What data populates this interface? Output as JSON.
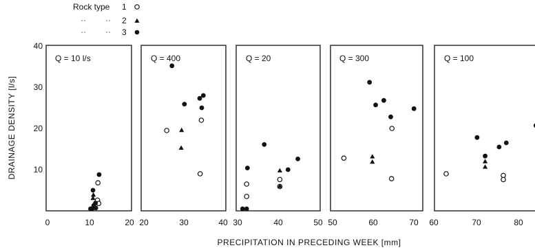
{
  "legend": {
    "title": "Rock type",
    "entries": [
      {
        "label": "1",
        "marker": "open-circle"
      },
      {
        "label": "2",
        "marker": "filled-triangle"
      },
      {
        "label": "3",
        "marker": "filled-circle"
      }
    ]
  },
  "colors": {
    "ink": "#111111",
    "background": "#ffffff"
  },
  "chart_data": [
    {
      "type": "scatter",
      "title": "Q = 10 l/s",
      "xlabel": "PRECIPITATION IN PRECEDING WEEK [mm]",
      "ylabel": "DRAINAGE DENSITY [l/s]",
      "xlim": [
        0,
        20
      ],
      "ylim": [
        0,
        40
      ],
      "xticks": [
        0,
        10,
        20
      ],
      "yticks": [
        10,
        20,
        30,
        40
      ],
      "xtick_labels": [
        "0",
        "10",
        "20"
      ],
      "ytick_labels": [
        "10",
        "20",
        "30",
        "40"
      ],
      "series": [
        {
          "name": "1",
          "marker": "open-circle",
          "points": [
            [
              12.3,
              6.8
            ],
            [
              12.2,
              2.6
            ],
            [
              12.5,
              1.8
            ]
          ]
        },
        {
          "name": "2",
          "marker": "filled-triangle",
          "points": [
            [
              11.2,
              3.9
            ],
            [
              11.1,
              3.1
            ]
          ]
        },
        {
          "name": "3",
          "marker": "filled-circle",
          "points": [
            [
              12.6,
              8.8
            ],
            [
              11.1,
              5.0
            ],
            [
              11.7,
              1.9
            ],
            [
              11.3,
              1.3
            ],
            [
              10.5,
              0.5
            ],
            [
              11.0,
              0.6
            ],
            [
              11.8,
              0.7
            ]
          ]
        }
      ]
    },
    {
      "type": "scatter",
      "title": "Q = 400",
      "xlim": [
        20,
        40
      ],
      "ylim": [
        0,
        40
      ],
      "xticks": [
        20,
        30,
        40
      ],
      "xtick_labels": [
        "20",
        "30",
        "40"
      ],
      "series": [
        {
          "name": "1",
          "marker": "open-circle",
          "points": [
            [
              26.0,
              19.5
            ],
            [
              34.6,
              22.0
            ],
            [
              34.3,
              9.0
            ]
          ]
        },
        {
          "name": "2",
          "marker": "filled-triangle",
          "points": [
            [
              29.7,
              19.6
            ],
            [
              29.6,
              15.3
            ]
          ]
        },
        {
          "name": "3",
          "marker": "filled-circle",
          "points": [
            [
              27.3,
              35.2
            ],
            [
              30.4,
              25.9
            ],
            [
              34.2,
              27.3
            ],
            [
              35.1,
              28.0
            ],
            [
              34.7,
              25.0
            ]
          ]
        }
      ]
    },
    {
      "type": "scatter",
      "title": "Q = 20",
      "xlim": [
        30,
        50
      ],
      "ylim": [
        0,
        40
      ],
      "xticks": [
        30,
        40,
        50
      ],
      "xtick_labels": [
        "30",
        "40",
        "50"
      ],
      "series": [
        {
          "name": "1",
          "marker": "open-circle",
          "points": [
            [
              32.3,
              6.5
            ],
            [
              32.3,
              3.5
            ],
            [
              40.4,
              7.6
            ],
            [
              40.4,
              5.9
            ]
          ]
        },
        {
          "name": "2",
          "marker": "filled-triangle",
          "points": [
            [
              40.4,
              9.8
            ],
            [
              40.4,
              6.0
            ]
          ]
        },
        {
          "name": "3",
          "marker": "filled-circle",
          "points": [
            [
              32.5,
              10.4
            ],
            [
              36.6,
              16.1
            ],
            [
              42.4,
              10.0
            ],
            [
              44.8,
              12.6
            ],
            [
              31.3,
              0.5
            ],
            [
              32.3,
              0.5
            ]
          ]
        }
      ]
    },
    {
      "type": "scatter",
      "title": "Q = 300",
      "xlim": [
        50,
        70
      ],
      "ylim": [
        0,
        40
      ],
      "xticks": [
        50,
        60,
        70
      ],
      "xtick_labels": [
        "50",
        "60",
        "70"
      ],
      "series": [
        {
          "name": "1",
          "marker": "open-circle",
          "points": [
            [
              52.6,
              12.8
            ],
            [
              64.4,
              20.0
            ],
            [
              64.3,
              7.8
            ]
          ]
        },
        {
          "name": "2",
          "marker": "filled-triangle",
          "points": [
            [
              59.6,
              13.2
            ],
            [
              59.6,
              11.9
            ]
          ]
        },
        {
          "name": "3",
          "marker": "filled-circle",
          "points": [
            [
              58.9,
              31.2
            ],
            [
              60.4,
              25.7
            ],
            [
              62.4,
              26.8
            ],
            [
              64.1,
              22.8
            ],
            [
              69.8,
              24.8
            ]
          ]
        }
      ]
    },
    {
      "type": "scatter",
      "title": "Q = 100",
      "xlim": [
        60,
        84
      ],
      "ylim": [
        0,
        40
      ],
      "xticks": [
        60,
        70,
        80
      ],
      "xtick_labels": [
        "60",
        "70",
        "80"
      ],
      "series": [
        {
          "name": "1",
          "marker": "open-circle",
          "points": [
            [
              62.6,
              9.0
            ],
            [
              76.1,
              8.6
            ],
            [
              76.1,
              7.6
            ]
          ]
        },
        {
          "name": "2",
          "marker": "filled-triangle",
          "points": [
            [
              71.8,
              12.0
            ],
            [
              71.8,
              10.7
            ]
          ]
        },
        {
          "name": "3",
          "marker": "filled-circle",
          "points": [
            [
              69.9,
              17.8
            ],
            [
              71.8,
              13.3
            ],
            [
              75.1,
              15.5
            ],
            [
              76.8,
              16.5
            ],
            [
              83.8,
              20.7
            ]
          ]
        }
      ]
    }
  ]
}
